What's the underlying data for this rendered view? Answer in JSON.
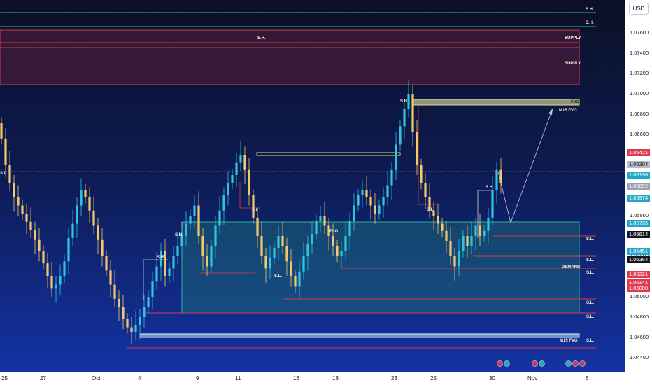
{
  "axis": {
    "currency": "USD",
    "ticks": [
      "1.07600",
      "1.07400",
      "1.07200",
      "1.07000",
      "1.06800",
      "1.06600",
      "1.06400",
      "1.06200",
      "1.05800",
      "1.05600",
      "1.05400",
      "1.05200",
      "1.05000",
      "1.04800",
      "1.04600",
      "1.04400"
    ]
  },
  "time_axis": [
    "25",
    "27",
    "Oct",
    "4",
    "9",
    "11",
    "16",
    "18",
    "23",
    "25",
    "30",
    "Nov",
    "6"
  ],
  "price_labels": [
    {
      "text": "1.06421",
      "color": "#e03a50",
      "price": 1.06421
    },
    {
      "text": "1.06304",
      "color": "#b9bcc6",
      "price": 1.06304
    },
    {
      "text": "1.06198",
      "color": "#22a7c8",
      "price": 1.06198
    },
    {
      "text": "1.06092",
      "color": "#9da0aa",
      "price": 1.06092
    },
    {
      "text": "1.05974",
      "color": "#22a7c8",
      "price": 1.05974
    },
    {
      "text": "1.05725",
      "color": "#22a7c8",
      "price": 1.05725
    },
    {
      "text": "1.05614",
      "color": "#131722",
      "price": 1.05614
    },
    {
      "text": "1.05451",
      "color": "#22a7c8",
      "price": 1.05451
    },
    {
      "text": "1.05364",
      "color": "#131722",
      "price": 1.05364
    },
    {
      "text": "1.05221",
      "color": "#e03a50",
      "price": 1.05221
    },
    {
      "text": "1.05141",
      "color": "#e03a50",
      "price": 1.05141
    },
    {
      "text": "1.05080",
      "color": "#e03a50",
      "price": 1.0508
    }
  ],
  "annotations": {
    "sh_top1": "S.H.",
    "sh_top2": "S.H.",
    "supply_sh": "S.H.",
    "supply1": "SUPPLY",
    "supply2": "SUPPLY",
    "fvg_top": "FVG",
    "m15_fvg_top": "M15 FVG",
    "sh_peak": "S.H.",
    "sl_left": "S.L.",
    "sl_mid": "S.L.",
    "sh_right": "S.H.",
    "sl_right_a": "S.L.",
    "sh_mid": "S.H.",
    "sh_mid2": "S.H.",
    "fvg_mid": "FVG",
    "sl_r1": "S.L.",
    "sl_r2": "S.L.",
    "sl_r3": "S.L.",
    "demand": "DEMAND",
    "sl_low": "S.L.",
    "sl_r4": "S.L.",
    "m15_fvg_low": "M15 FVG",
    "sl_r5": "S.L.",
    "sl_r6": "S.L."
  },
  "chart_data": {
    "type": "candlestick",
    "symbol_quote": "USD",
    "ylim": [
      1.0432,
      1.0772
    ],
    "x_ticks": [
      "25",
      "27",
      "Oct",
      "4",
      "9",
      "11",
      "16",
      "18",
      "23",
      "25",
      "30",
      "Nov",
      "6"
    ],
    "approx_closes": [
      1.0656,
      1.063,
      1.0612,
      1.0598,
      1.059,
      1.0582,
      1.0574,
      1.0566,
      1.0556,
      1.0545,
      1.0533,
      1.052,
      1.0508,
      1.0512,
      1.052,
      1.0535,
      1.0558,
      1.0572,
      1.059,
      1.0605,
      1.0598,
      1.0585,
      1.057,
      1.0556,
      1.054,
      1.0526,
      1.0512,
      1.0498,
      1.049,
      1.0478,
      1.047,
      1.0465,
      1.0472,
      1.048,
      1.049,
      1.05,
      1.0515,
      1.053,
      1.0545,
      1.052,
      1.0528,
      1.054,
      1.055,
      1.056,
      1.0572,
      1.058,
      1.059,
      1.056,
      1.054,
      1.053,
      1.055,
      1.057,
      1.0585,
      1.06,
      1.0612,
      1.062,
      1.0632,
      1.064,
      1.0625,
      1.06,
      1.0578,
      1.056,
      1.054,
      1.0528,
      1.0538,
      1.0548,
      1.056,
      1.055,
      1.0535,
      1.052,
      1.051,
      1.0525,
      1.054,
      1.0552,
      1.0562,
      1.0575,
      1.058,
      1.057,
      1.056,
      1.055,
      1.054,
      1.0545,
      1.056,
      1.0575,
      1.059,
      1.06,
      1.0605,
      1.0598,
      1.059,
      1.0582,
      1.059,
      1.0598,
      1.061,
      1.0625,
      1.065,
      1.0668,
      1.0685,
      1.07,
      1.0662,
      1.063,
      1.0612,
      1.0598,
      1.0585,
      1.058,
      1.0572,
      1.0565,
      1.0555,
      1.054,
      1.053,
      1.0545,
      1.056,
      1.055,
      1.056,
      1.057,
      1.056,
      1.0565,
      1.0578,
      1.0605,
      1.0625,
      1.0612
    ]
  }
}
